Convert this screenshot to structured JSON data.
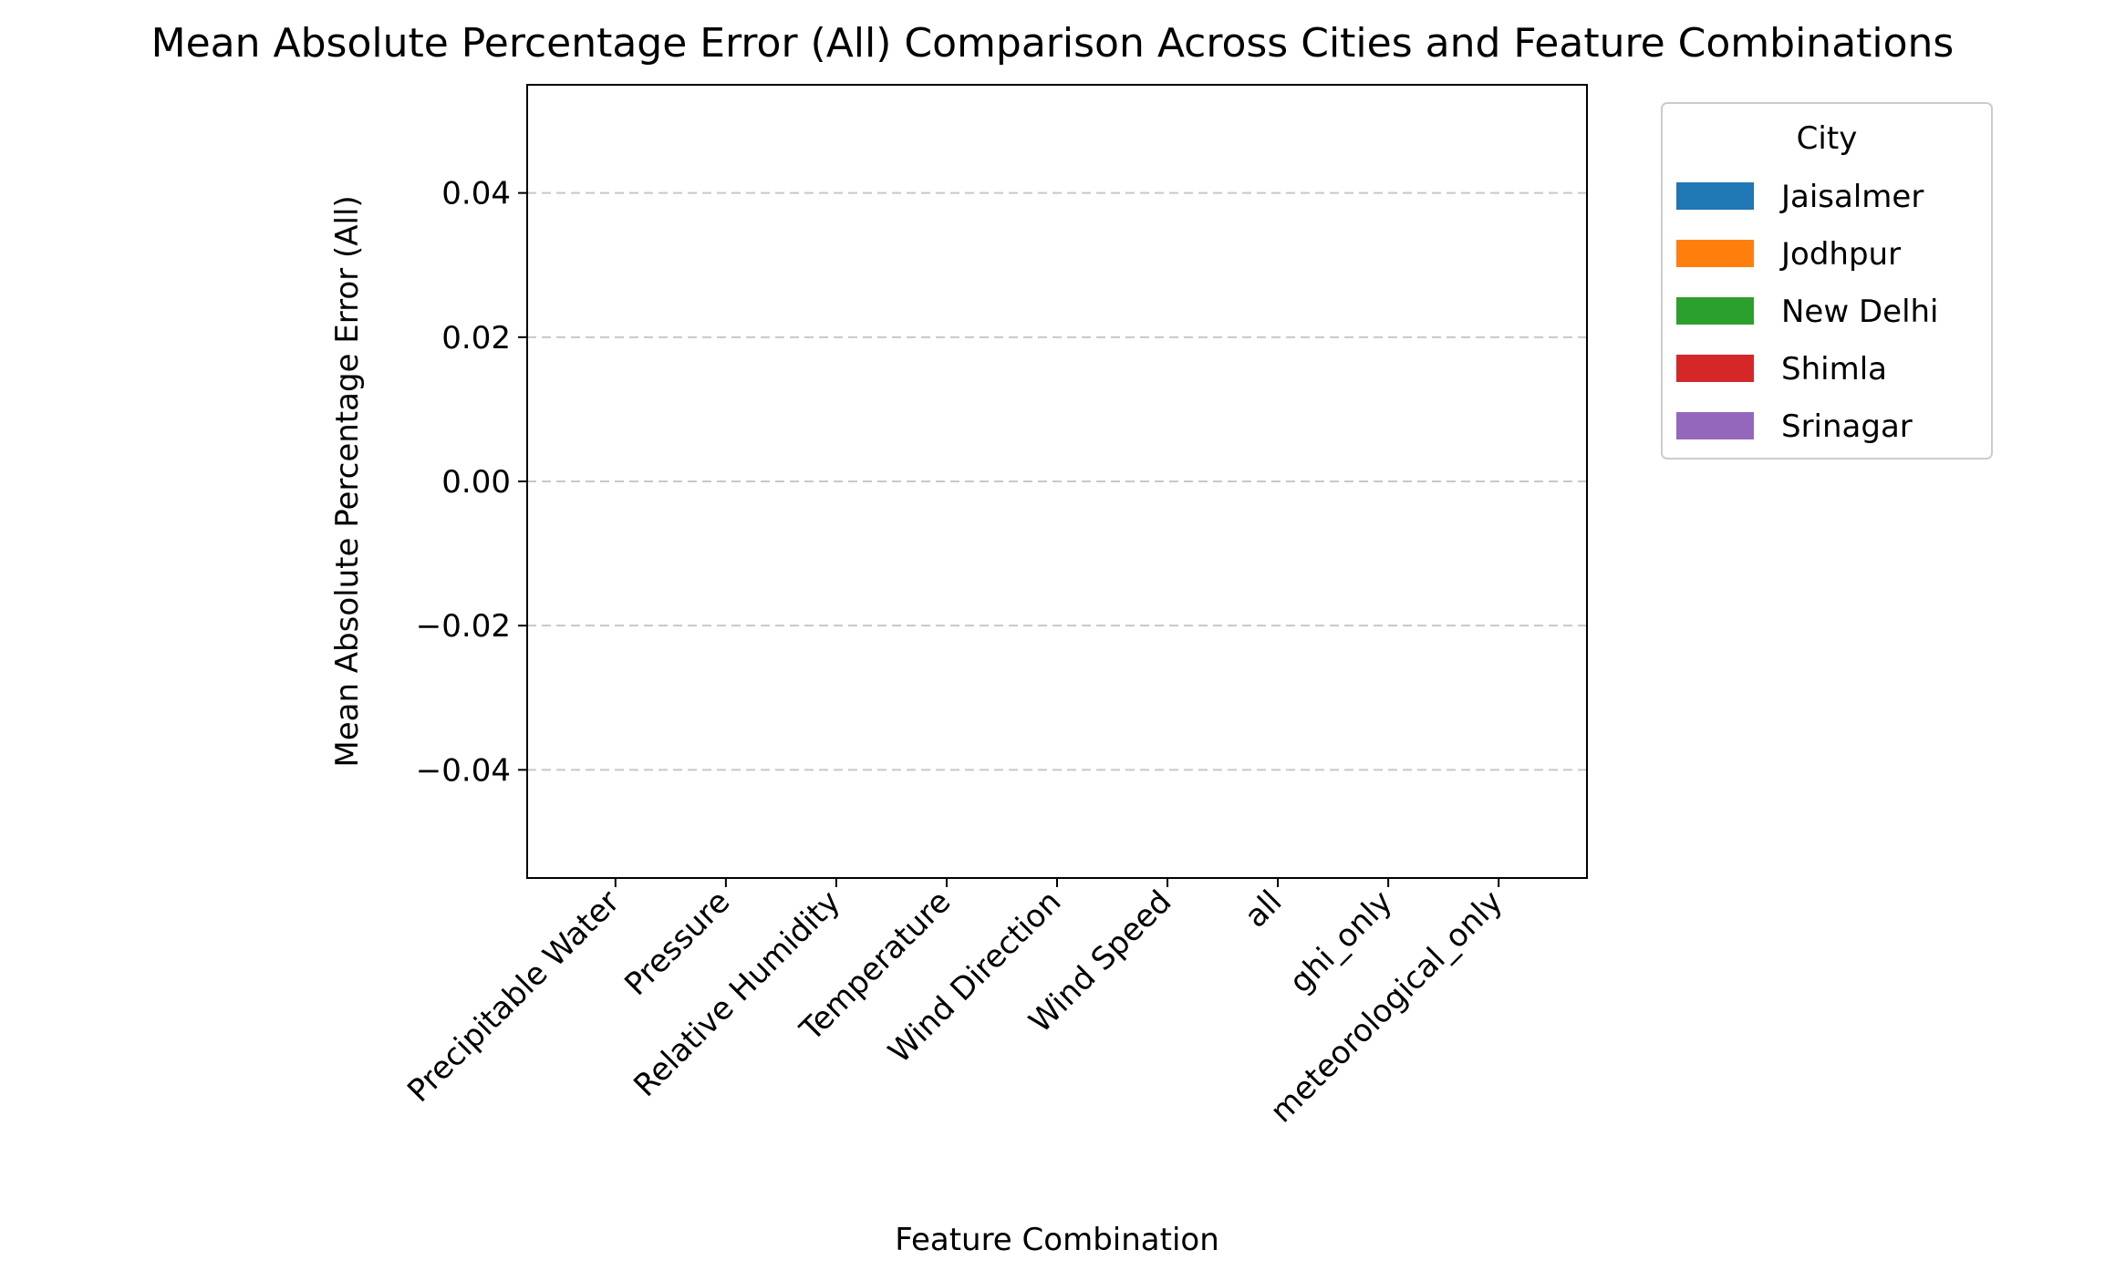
{
  "chart_data": {
    "type": "bar",
    "title": "Mean Absolute Percentage Error (All) Comparison Across Cities and Feature Combinations",
    "xlabel": "Feature Combination",
    "ylabel": "Mean Absolute Percentage Error (All)",
    "categories": [
      "Precipitable Water",
      "Pressure",
      "Relative Humidity",
      "Temperature",
      "Wind Direction",
      "Wind Speed",
      "all",
      "ghi_only",
      "meteorological_only"
    ],
    "yticks": [
      "0.04",
      "0.02",
      "0.00",
      "−0.02",
      "−0.04"
    ],
    "ytick_values": [
      0.04,
      0.02,
      0.0,
      -0.02,
      -0.04
    ],
    "ylim": [
      -0.055,
      0.055
    ],
    "grid": "y, dashed",
    "legend": {
      "title": "City",
      "placement": "outside-right-top",
      "items": [
        {
          "name": "Jaisalmer",
          "color": "#1f77b4"
        },
        {
          "name": "Jodhpur",
          "color": "#ff7f0e"
        },
        {
          "name": "New Delhi",
          "color": "#2ca02c"
        },
        {
          "name": "Shimla",
          "color": "#d62728"
        },
        {
          "name": "Srinagar",
          "color": "#9467bd"
        }
      ]
    },
    "series": []
  }
}
